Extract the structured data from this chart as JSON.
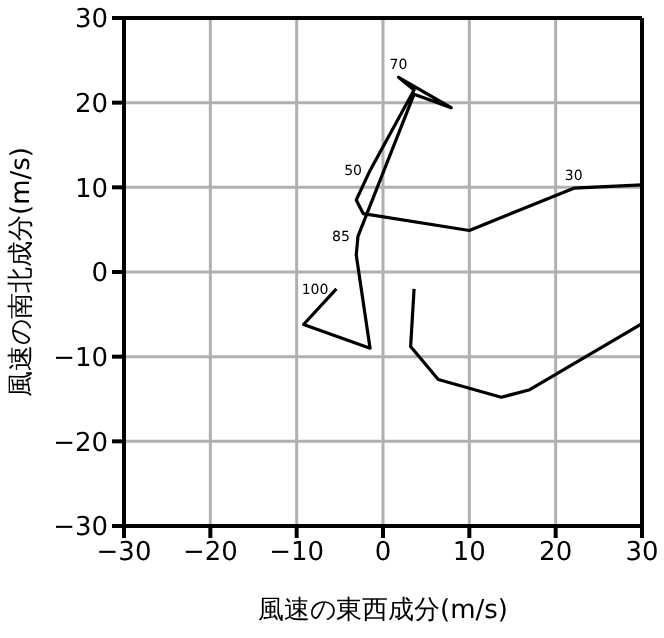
{
  "chart_data": {
    "type": "line",
    "xlabel": "風速の東西成分(m/s)",
    "ylabel": "風速の南北成分(m/s)",
    "xlim": [
      -30,
      30
    ],
    "ylim": [
      -30,
      30
    ],
    "xticks": [
      {
        "value": -30,
        "label": "−30"
      },
      {
        "value": -20,
        "label": "−20"
      },
      {
        "value": -10,
        "label": "−10"
      },
      0,
      10,
      20,
      30
    ],
    "yticks": [
      {
        "value": -30,
        "label": "−30"
      },
      {
        "value": -20,
        "label": "−20"
      },
      {
        "value": -10,
        "label": "−10"
      },
      0,
      10,
      20,
      30
    ],
    "grid": true,
    "marker": "none",
    "line_style": "solid",
    "series": [
      {
        "color": "#000000",
        "x": [
          30.0,
          22.1,
          10.0,
          -2.3,
          -3.1,
          -1.5,
          3.6,
          1.8,
          7.9,
          3.6,
          -2.9,
          -3.1,
          -1.5,
          -9.2,
          -5.4
        ],
        "values": [
          10.3,
          9.9,
          4.9,
          6.9,
          8.5,
          12.0,
          21.5,
          23.0,
          19.4,
          21.0,
          4.2,
          2.0,
          -9.0,
          -6.2,
          -2.0
        ]
      },
      {
        "color": "#000000",
        "x": [
          3.6,
          3.2,
          6.4,
          13.7,
          17.0,
          30.0
        ],
        "values": [
          -2.0,
          -8.8,
          -12.7,
          -14.8,
          -13.9,
          -6.1
        ]
      }
    ],
    "annotations": [
      {
        "text": "30",
        "x": 22.1,
        "y": 9.9
      },
      {
        "text": "50",
        "x": -1.5,
        "y": 12.0
      },
      {
        "text": "70",
        "x": 1.8,
        "y": 23.0
      },
      {
        "text": "85",
        "x": -2.9,
        "y": 4.2
      },
      {
        "text": "100",
        "x": -5.4,
        "y": -2.0
      }
    ]
  }
}
